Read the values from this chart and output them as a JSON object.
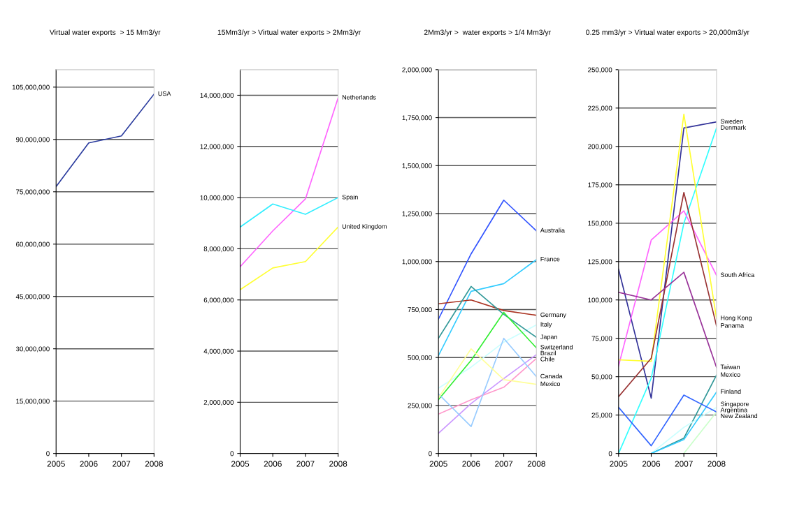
{
  "chart_data": [
    {
      "type": "line",
      "title": "Virtual water exports  > 15 Mm3/yr",
      "categories": [
        "2005",
        "2006",
        "2007",
        "2008"
      ],
      "ylim": [
        0,
        110000000
      ],
      "yticks": [
        {
          "value": 0,
          "label": "0"
        },
        {
          "value": 15000000,
          "label": "15,000,000"
        },
        {
          "value": 30000000,
          "label": "30,000,000"
        },
        {
          "value": 45000000,
          "label": "45,000,000"
        },
        {
          "value": 60000000,
          "label": "60,000,000"
        },
        {
          "value": 75000000,
          "label": "75,000,000"
        },
        {
          "value": 90000000,
          "label": "90,000,000"
        },
        {
          "value": 105000000,
          "label": "105,000,000"
        }
      ],
      "grid": "y",
      "legend": false,
      "series": [
        {
          "name": "USA",
          "color": "#2b3c9e",
          "values": [
            76500000,
            89000000,
            91000000,
            103000000
          ]
        }
      ]
    },
    {
      "type": "line",
      "title": "15Mm3/yr > Virtual water exports > 2Mm3/yr",
      "categories": [
        "2005",
        "2006",
        "2007",
        "2008"
      ],
      "ylim": [
        0,
        15000000
      ],
      "yticks": [
        {
          "value": 0,
          "label": "0"
        },
        {
          "value": 2000000,
          "label": "2,000,000"
        },
        {
          "value": 4000000,
          "label": "4,000,000"
        },
        {
          "value": 6000000,
          "label": "6,000,000"
        },
        {
          "value": 8000000,
          "label": "8,000,000"
        },
        {
          "value": 10000000,
          "label": "10,000,000"
        },
        {
          "value": 12000000,
          "label": "12,000,000"
        },
        {
          "value": 14000000,
          "label": "14,000,000"
        }
      ],
      "grid": "y",
      "legend": false,
      "series": [
        {
          "name": "Netherlands",
          "color": "#ff66ff",
          "values": [
            7300000,
            8700000,
            9950000,
            13900000
          ]
        },
        {
          "name": "Spain",
          "color": "#33eeff",
          "values": [
            8850000,
            9750000,
            9350000,
            10000000
          ]
        },
        {
          "name": "United Kingdom",
          "color": "#ffff33",
          "values": [
            6400000,
            7250000,
            7500000,
            8850000
          ]
        }
      ]
    },
    {
      "type": "line",
      "title": "2Mm3/yr >  water exports > 1/4 Mm3/yr",
      "categories": [
        "2005",
        "2006",
        "2007",
        "2008"
      ],
      "ylim": [
        0,
        2000000
      ],
      "yticks": [
        {
          "value": 0,
          "label": "0"
        },
        {
          "value": 250000,
          "label": "250,000"
        },
        {
          "value": 500000,
          "label": "500,000"
        },
        {
          "value": 750000,
          "label": "750,000"
        },
        {
          "value": 1000000,
          "label": "1,000,000"
        },
        {
          "value": 1250000,
          "label": "1,250,000"
        },
        {
          "value": 1500000,
          "label": "1,500,000"
        },
        {
          "value": 1750000,
          "label": "1,750,000"
        },
        {
          "value": 2000000,
          "label": "2,000,000"
        }
      ],
      "grid": "y",
      "legend": false,
      "series": [
        {
          "name": "Australia",
          "color": "#3355ff",
          "values": [
            700000,
            1040000,
            1320000,
            1160000
          ]
        },
        {
          "name": "France",
          "color": "#33ccff",
          "values": [
            510000,
            845000,
            885000,
            1010000
          ]
        },
        {
          "name": "Germany",
          "color": "#aa3322",
          "values": [
            780000,
            800000,
            745000,
            720000
          ]
        },
        {
          "name": "Italy",
          "color": "#ccffff",
          "values": [
            340000,
            450000,
            580000,
            670000
          ]
        },
        {
          "name": "Japan",
          "color": "#339999",
          "values": [
            600000,
            870000,
            725000,
            605000
          ]
        },
        {
          "name": "Switzerland",
          "color": "#33ee33",
          "values": [
            280000,
            485000,
            735000,
            550000
          ]
        },
        {
          "name": "Brazil",
          "color": "#cc99ff",
          "values": [
            105000,
            260000,
            390000,
            515000
          ]
        },
        {
          "name": "Chile",
          "color": "#ff99cc",
          "values": [
            205000,
            280000,
            345000,
            495000
          ]
        },
        {
          "name": "Canada",
          "color": "#99ccff",
          "values": [
            310000,
            140000,
            600000,
            400000
          ]
        },
        {
          "name": "Mexico",
          "color": "#ffff99",
          "values": [
            290000,
            545000,
            385000,
            360000
          ]
        }
      ]
    },
    {
      "type": "line",
      "title": "0.25 mm3/yr > Virtual water exports > 20,000m3/yr",
      "categories": [
        "2005",
        "2006",
        "2007",
        "2008"
      ],
      "ylim": [
        0,
        250000
      ],
      "yticks": [
        {
          "value": 0,
          "label": "0"
        },
        {
          "value": 25000,
          "label": "25,000"
        },
        {
          "value": 50000,
          "label": "50,000"
        },
        {
          "value": 75000,
          "label": "75,000"
        },
        {
          "value": 100000,
          "label": "100,000"
        },
        {
          "value": 125000,
          "label": "125,000"
        },
        {
          "value": 150000,
          "label": "150,000"
        },
        {
          "value": 175000,
          "label": "175,000"
        },
        {
          "value": 200000,
          "label": "200,000"
        },
        {
          "value": 225000,
          "label": "225,000"
        },
        {
          "value": 250000,
          "label": "250,000"
        }
      ],
      "grid": "y",
      "legend": false,
      "series": [
        {
          "name": "Sweden",
          "color": "#333399",
          "values": [
            120000,
            36000,
            212000,
            216000
          ]
        },
        {
          "name": "Denmark",
          "color": "#33ffff",
          "values": [
            0,
            49000,
            150000,
            212000
          ]
        },
        {
          "name": "South Africa",
          "color": "#ff66ff",
          "values": [
            57000,
            139000,
            158000,
            116000
          ]
        },
        {
          "name": "Hong Kong",
          "color": "#ffff33",
          "values": [
            61000,
            60000,
            221000,
            88000
          ]
        },
        {
          "name": "Panama",
          "color": "#993333",
          "values": [
            37000,
            62000,
            170000,
            83000
          ]
        },
        {
          "name": "Taiwan",
          "color": "#993399",
          "values": [
            105000,
            100000,
            118000,
            56000
          ]
        },
        {
          "name": "Mexico",
          "color": "#339999",
          "values": [
            null,
            0,
            10000,
            51000
          ]
        },
        {
          "name": "Singapore",
          "color": "#ccffff",
          "values": [
            null,
            0,
            17000,
            30000
          ]
        },
        {
          "name": "Finland",
          "color": "#33ccff",
          "values": [
            null,
            0,
            9000,
            40000
          ]
        },
        {
          "name": "New Zealand",
          "color": "#ccffcc",
          "values": [
            null,
            null,
            0,
            27000
          ]
        },
        {
          "name": "Argentina",
          "color": "#3366ff",
          "values": [
            30000,
            5000,
            38000,
            27000
          ]
        }
      ]
    }
  ]
}
